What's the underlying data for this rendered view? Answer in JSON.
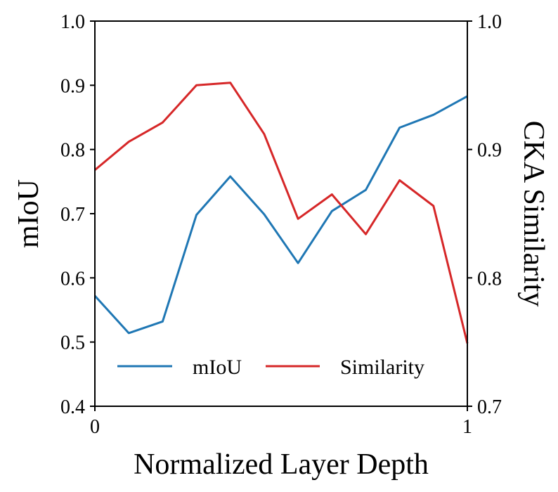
{
  "chart_data": {
    "type": "line",
    "xlabel": "Normalized Layer Depth",
    "ylabel_left": "mIoU",
    "ylabel_right": "CKA Similarity",
    "xlim": [
      0,
      1
    ],
    "ylim_left": [
      0.4,
      1.0
    ],
    "ylim_right": [
      0.7,
      1.0
    ],
    "x_ticks": [
      "0",
      "1"
    ],
    "y_left_ticks": [
      "0.4",
      "0.5",
      "0.6",
      "0.7",
      "0.8",
      "0.9",
      "1.0"
    ],
    "y_right_ticks": [
      "0.7",
      "0.8",
      "0.9",
      "1.0"
    ],
    "legend_position": "lower-center",
    "series": [
      {
        "name": "mIoU",
        "axis": "left",
        "color": "#1f77b4",
        "x": [
          0,
          0.0909,
          0.1818,
          0.2727,
          0.3636,
          0.4545,
          0.5455,
          0.6364,
          0.7273,
          0.8182,
          0.9091,
          1.0
        ],
        "y": [
          0.572,
          0.514,
          0.532,
          0.698,
          0.758,
          0.699,
          0.623,
          0.704,
          0.737,
          0.834,
          0.854,
          0.883
        ]
      },
      {
        "name": "Similarity",
        "axis": "right",
        "color": "#d62728",
        "x": [
          0,
          0.0909,
          0.1818,
          0.2727,
          0.3636,
          0.4545,
          0.5455,
          0.6364,
          0.7273,
          0.8182,
          0.9091,
          1.0
        ],
        "y": [
          0.884,
          0.906,
          0.921,
          0.95,
          0.952,
          0.912,
          0.846,
          0.865,
          0.834,
          0.876,
          0.856,
          0.749
        ]
      }
    ]
  }
}
